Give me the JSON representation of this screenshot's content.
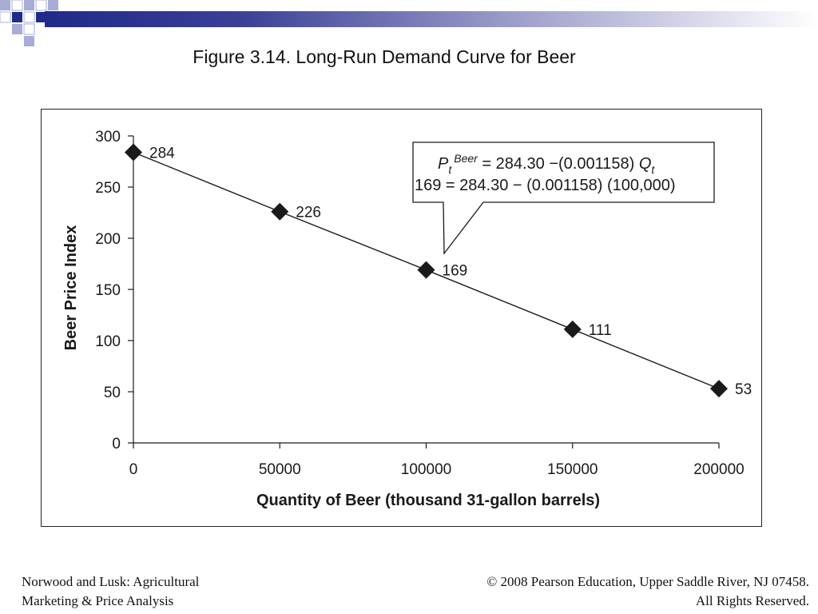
{
  "slide": {
    "title": "Figure 3.14.  Long-Run Demand Curve for Beer",
    "footer_left": [
      "Norwood and Lusk: Agricultural",
      "Marketing & Price Analysis"
    ],
    "footer_right": [
      "© 2008 Pearson Education, Upper Saddle River, NJ 07458.",
      "All Rights Reserved."
    ],
    "accent_color": "#1f2a8a",
    "accent_light": "#a9acd6"
  },
  "chart_data": {
    "type": "line",
    "title": "",
    "xlabel": "Quantity of Beer (thousand 31-gallon barrels)",
    "ylabel": "Beer Price Index",
    "xlim": [
      0,
      200000
    ],
    "ylim": [
      0,
      300
    ],
    "x_ticks": [
      "0",
      "50000",
      "100000",
      "150000",
      "200000"
    ],
    "y_ticks": [
      "0",
      "50",
      "100",
      "150",
      "200",
      "250",
      "300"
    ],
    "grid": false,
    "legend": "none",
    "marker": "diamond",
    "line_color": "#1a1a1a",
    "series": [
      {
        "x": [
          0,
          50000,
          100000,
          150000,
          200000
        ],
        "y": [
          284,
          226,
          169,
          111,
          53
        ],
        "labels": [
          "284",
          "226",
          "169",
          "111",
          "53"
        ]
      }
    ],
    "annotation": {
      "line1": {
        "symbol": "P",
        "subscript": "t",
        "superscript": "Beer",
        "rest": " = 284.30 −(0.001158) ",
        "end_symbol": "Q",
        "end_subscript": "t"
      },
      "line2": "169 = 284.30 − (0.001158) (100,000)",
      "points_to": {
        "x": 100000,
        "y": 169
      }
    }
  }
}
